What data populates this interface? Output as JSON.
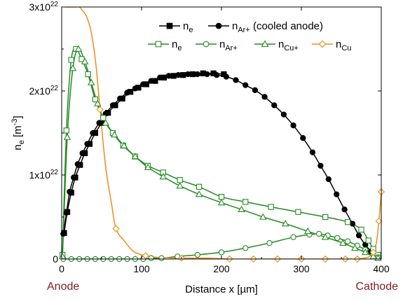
{
  "chart_data": {
    "type": "line",
    "title": "",
    "xlabel": "Distance x [µm]",
    "ylabel_base": "n",
    "ylabel_sub": "e",
    "ylabel_unit_open": " [m",
    "ylabel_unit_sup": "-3",
    "ylabel_unit_close": "]",
    "xlim": [
      0,
      400
    ],
    "ylim": [
      0,
      3e+22
    ],
    "x_ticks": [
      {
        "value": 0,
        "label": "0"
      },
      {
        "value": 100,
        "label": "100"
      },
      {
        "value": 200,
        "label": "200"
      },
      {
        "value": 300,
        "label": "300"
      },
      {
        "value": 400,
        "label": "400"
      }
    ],
    "y_ticks": [
      {
        "value": 0,
        "base": "0",
        "exp": ""
      },
      {
        "value": 1e+22,
        "base": "1x10",
        "exp": "22"
      },
      {
        "value": 2e+22,
        "base": "2x10",
        "exp": "22"
      },
      {
        "value": 3e+22,
        "base": "3x10",
        "exp": "22"
      }
    ],
    "left_label": "Anode",
    "right_label": "Cathode",
    "end_label_color": "#7f1f1f",
    "legend": {
      "placement": "top-right",
      "row1": [
        {
          "series": "ne_cooled",
          "base": "n",
          "sub": "e",
          "suffix": ""
        },
        {
          "series": "nAr_cooled",
          "base": "n",
          "sub": "Ar+",
          "suffix": " (cooled anode)"
        }
      ],
      "row2": [
        {
          "series": "ne",
          "base": "n",
          "sub": "e",
          "suffix": ""
        },
        {
          "series": "nAr",
          "base": "n",
          "sub": "Ar+",
          "suffix": ""
        },
        {
          "series": "nCu_ion",
          "base": "n",
          "sub": "Cu+",
          "suffix": ""
        },
        {
          "series": "nCu",
          "base": "n",
          "sub": "Cu",
          "suffix": ""
        }
      ]
    },
    "series": [
      {
        "id": "ne_cooled",
        "color": "#000000",
        "marker": "square",
        "filled": true,
        "x": [
          3,
          7,
          12,
          17,
          23,
          29,
          35,
          42,
          50,
          58,
          67,
          76,
          86,
          96,
          106,
          117,
          128,
          140,
          152,
          164,
          177,
          190,
          203
        ],
        "y": [
          3.1e+21,
          5.6e+21,
          7.9e+21,
          9.7e+21,
          1.12e+22,
          1.26e+22,
          1.37e+22,
          1.5e+22,
          1.62e+22,
          1.74e+22,
          1.83e+22,
          1.91e+22,
          1.99e+22,
          2.04e+22,
          2.08e+22,
          2.12e+22,
          2.16e+22,
          2.18e+22,
          2.19e+22,
          2.2e+22,
          2.21e+22,
          2.21e+22,
          2.2e+22
        ]
      },
      {
        "id": "nAr_cooled",
        "color": "#000000",
        "marker": "circle",
        "filled": true,
        "x": [
          2,
          6,
          10,
          15,
          20,
          26,
          32,
          39,
          47,
          55,
          64,
          73,
          82,
          92,
          102,
          112,
          123,
          134,
          146,
          158,
          170,
          182,
          194,
          206,
          218,
          230,
          242,
          254,
          266,
          278,
          290,
          302,
          314,
          324,
          334,
          344,
          354,
          364,
          372,
          380,
          387,
          392
        ],
        "y": [
          3e+21,
          5.5e+21,
          8e+21,
          9.7e+21,
          1.13e+22,
          1.26e+22,
          1.37e+22,
          1.5e+22,
          1.62e+22,
          1.73e+22,
          1.83e+22,
          1.91e+22,
          1.98e+22,
          2.03e+22,
          2.08e+22,
          2.12e+22,
          2.16e+22,
          2.18e+22,
          2.19e+22,
          2.2e+22,
          2.2e+22,
          2.2e+22,
          2.19e+22,
          2.17e+22,
          2.13e+22,
          2.07e+22,
          2.01e+22,
          1.93e+22,
          1.83e+22,
          1.72e+22,
          1.59e+22,
          1.44e+22,
          1.27e+22,
          1.11e+22,
          9.5e+21,
          7.7e+21,
          5.9e+21,
          4.2e+21,
          2.8e+21,
          1.7e+21,
          9e+20,
          4e+20
        ]
      },
      {
        "id": "ne",
        "color": "#238b23",
        "marker": "square",
        "filled": false,
        "x": [
          1,
          6,
          12,
          18,
          25,
          33,
          42,
          52,
          64,
          77,
          92,
          108,
          127,
          148,
          172,
          200,
          230,
          262,
          296,
          330,
          358,
          375,
          384,
          390,
          396
        ],
        "y": [
          5e+20,
          1.53e+22,
          2.37e+22,
          2.5e+22,
          2.38e+22,
          2.2e+22,
          1.9e+22,
          1.68e+22,
          1.5e+22,
          1.35e+22,
          1.22e+22,
          1.11e+22,
          1.03e+22,
          9.4e+21,
          8.6e+21,
          7.4e+21,
          6.8e+21,
          6.2e+21,
          5.6e+21,
          5e+21,
          4.4e+21,
          3.5e+21,
          2.2e+21,
          1.2e+21,
          5e+20
        ]
      },
      {
        "id": "nAr",
        "color": "#238b23",
        "marker": "circle",
        "filled": false,
        "x": [
          2,
          12,
          22,
          32,
          42,
          52,
          62,
          72,
          82,
          92,
          102,
          112,
          125,
          145,
          170,
          200,
          230,
          260,
          290,
          310,
          322,
          333,
          345,
          358,
          370,
          380,
          390,
          396
        ],
        "y": [
          0,
          0,
          0,
          0,
          0,
          0,
          0,
          0,
          0,
          0,
          0,
          1e+20,
          1e+20,
          3e+20,
          5e+20,
          8e+20,
          1.3e+21,
          1.9e+21,
          2.6e+21,
          2.9e+21,
          3e+21,
          2.8e+21,
          2.5e+21,
          2.1e+21,
          1.6e+21,
          1.1e+21,
          5e+20,
          2e+20
        ]
      },
      {
        "id": "nCu_ion",
        "color": "#238b23",
        "marker": "triangle",
        "filled": false,
        "x": [
          1,
          7,
          14,
          21,
          29,
          37,
          45,
          55,
          66,
          78,
          92,
          108,
          127,
          148,
          172,
          200,
          225,
          252,
          280,
          308,
          330,
          352,
          367,
          380,
          390,
          396
        ],
        "y": [
          3e+20,
          1.45e+22,
          2.27e+22,
          2.5e+22,
          2.35e+22,
          2.1e+22,
          1.85e+22,
          1.62e+22,
          1.48e+22,
          1.35e+22,
          1.22e+22,
          1.09e+22,
          9.8e+21,
          8.7e+21,
          7.7e+21,
          6.7e+21,
          5.9e+21,
          5e+21,
          4.2e+21,
          3.3e+21,
          2.6e+21,
          1.9e+21,
          1.3e+21,
          8e+20,
          3e+20,
          1e+20
        ]
      },
      {
        "id": "nCu",
        "color": "#f08c18",
        "marker": "diamond",
        "filled": false,
        "x": [
          4,
          8,
          12,
          15,
          18,
          22,
          26,
          31,
          37,
          43,
          48,
          55,
          62,
          68,
          78,
          90,
          105,
          120,
          150,
          180,
          210,
          240,
          270,
          300,
          330,
          355,
          370,
          378,
          385,
          390,
          394,
          397,
          400
        ],
        "y": [
          3e+22,
          3e+22,
          3e+22,
          3e+22,
          3e+22,
          3e+22,
          2.96e+22,
          2.89e+22,
          2.7e+22,
          2.3e+22,
          1.78e+22,
          1.1e+22,
          6.8e+21,
          3.6e+21,
          2.2e+21,
          9e+20,
          4e+20,
          2e+20,
          1e+20,
          1e+20,
          0,
          0,
          0,
          0,
          0,
          0,
          0,
          1e+20,
          3e+20,
          8e+20,
          2e+21,
          4.5e+21,
          8e+21
        ]
      }
    ],
    "marker_indices": {
      "ne_cooled": "all",
      "nAr_cooled": "all",
      "ne": "all",
      "nAr": "all",
      "nCu_ion": "all",
      "nCu": [
        5,
        10,
        13,
        16,
        18,
        20,
        21,
        22,
        23,
        24,
        25,
        26,
        29,
        31,
        32
      ]
    }
  }
}
